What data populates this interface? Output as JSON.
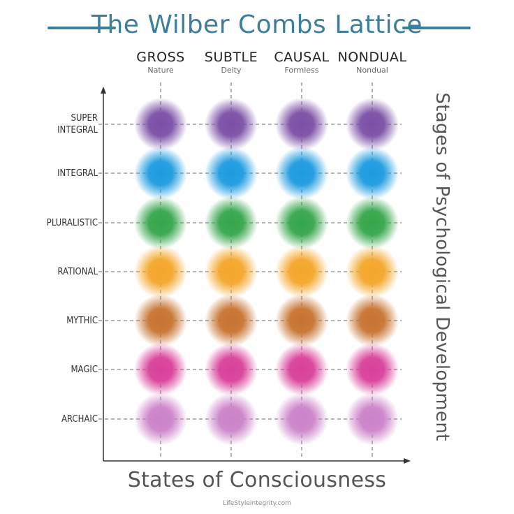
{
  "title": "The Wilber Combs Lattice",
  "accent_color": "#3a7f9b",
  "columns": [
    {
      "label": "GROSS",
      "sub": "Nature"
    },
    {
      "label": "SUBTLE",
      "sub": "Deity"
    },
    {
      "label": "CAUSAL",
      "sub": "Formless"
    },
    {
      "label": "NONDUAL",
      "sub": "Nondual"
    }
  ],
  "rows": [
    {
      "label": "SUPER\nINTEGRAL",
      "color": "#7b4fa6"
    },
    {
      "label": "INTEGRAL",
      "color": "#1d9be0"
    },
    {
      "label": "PLURALISTIC",
      "color": "#35a64a"
    },
    {
      "label": "RATIONAL",
      "color": "#f4a62a"
    },
    {
      "label": "MYTHIC",
      "color": "#c77330"
    },
    {
      "label": "MAGIC",
      "color": "#d9409a"
    },
    {
      "label": "ARCHAIC",
      "color": "#cc82c9"
    }
  ],
  "y_axis_title": "Stages of Psychological Development",
  "x_axis_title": "States of Consciousness",
  "footer": "LifeStyleIntegrity.com"
}
